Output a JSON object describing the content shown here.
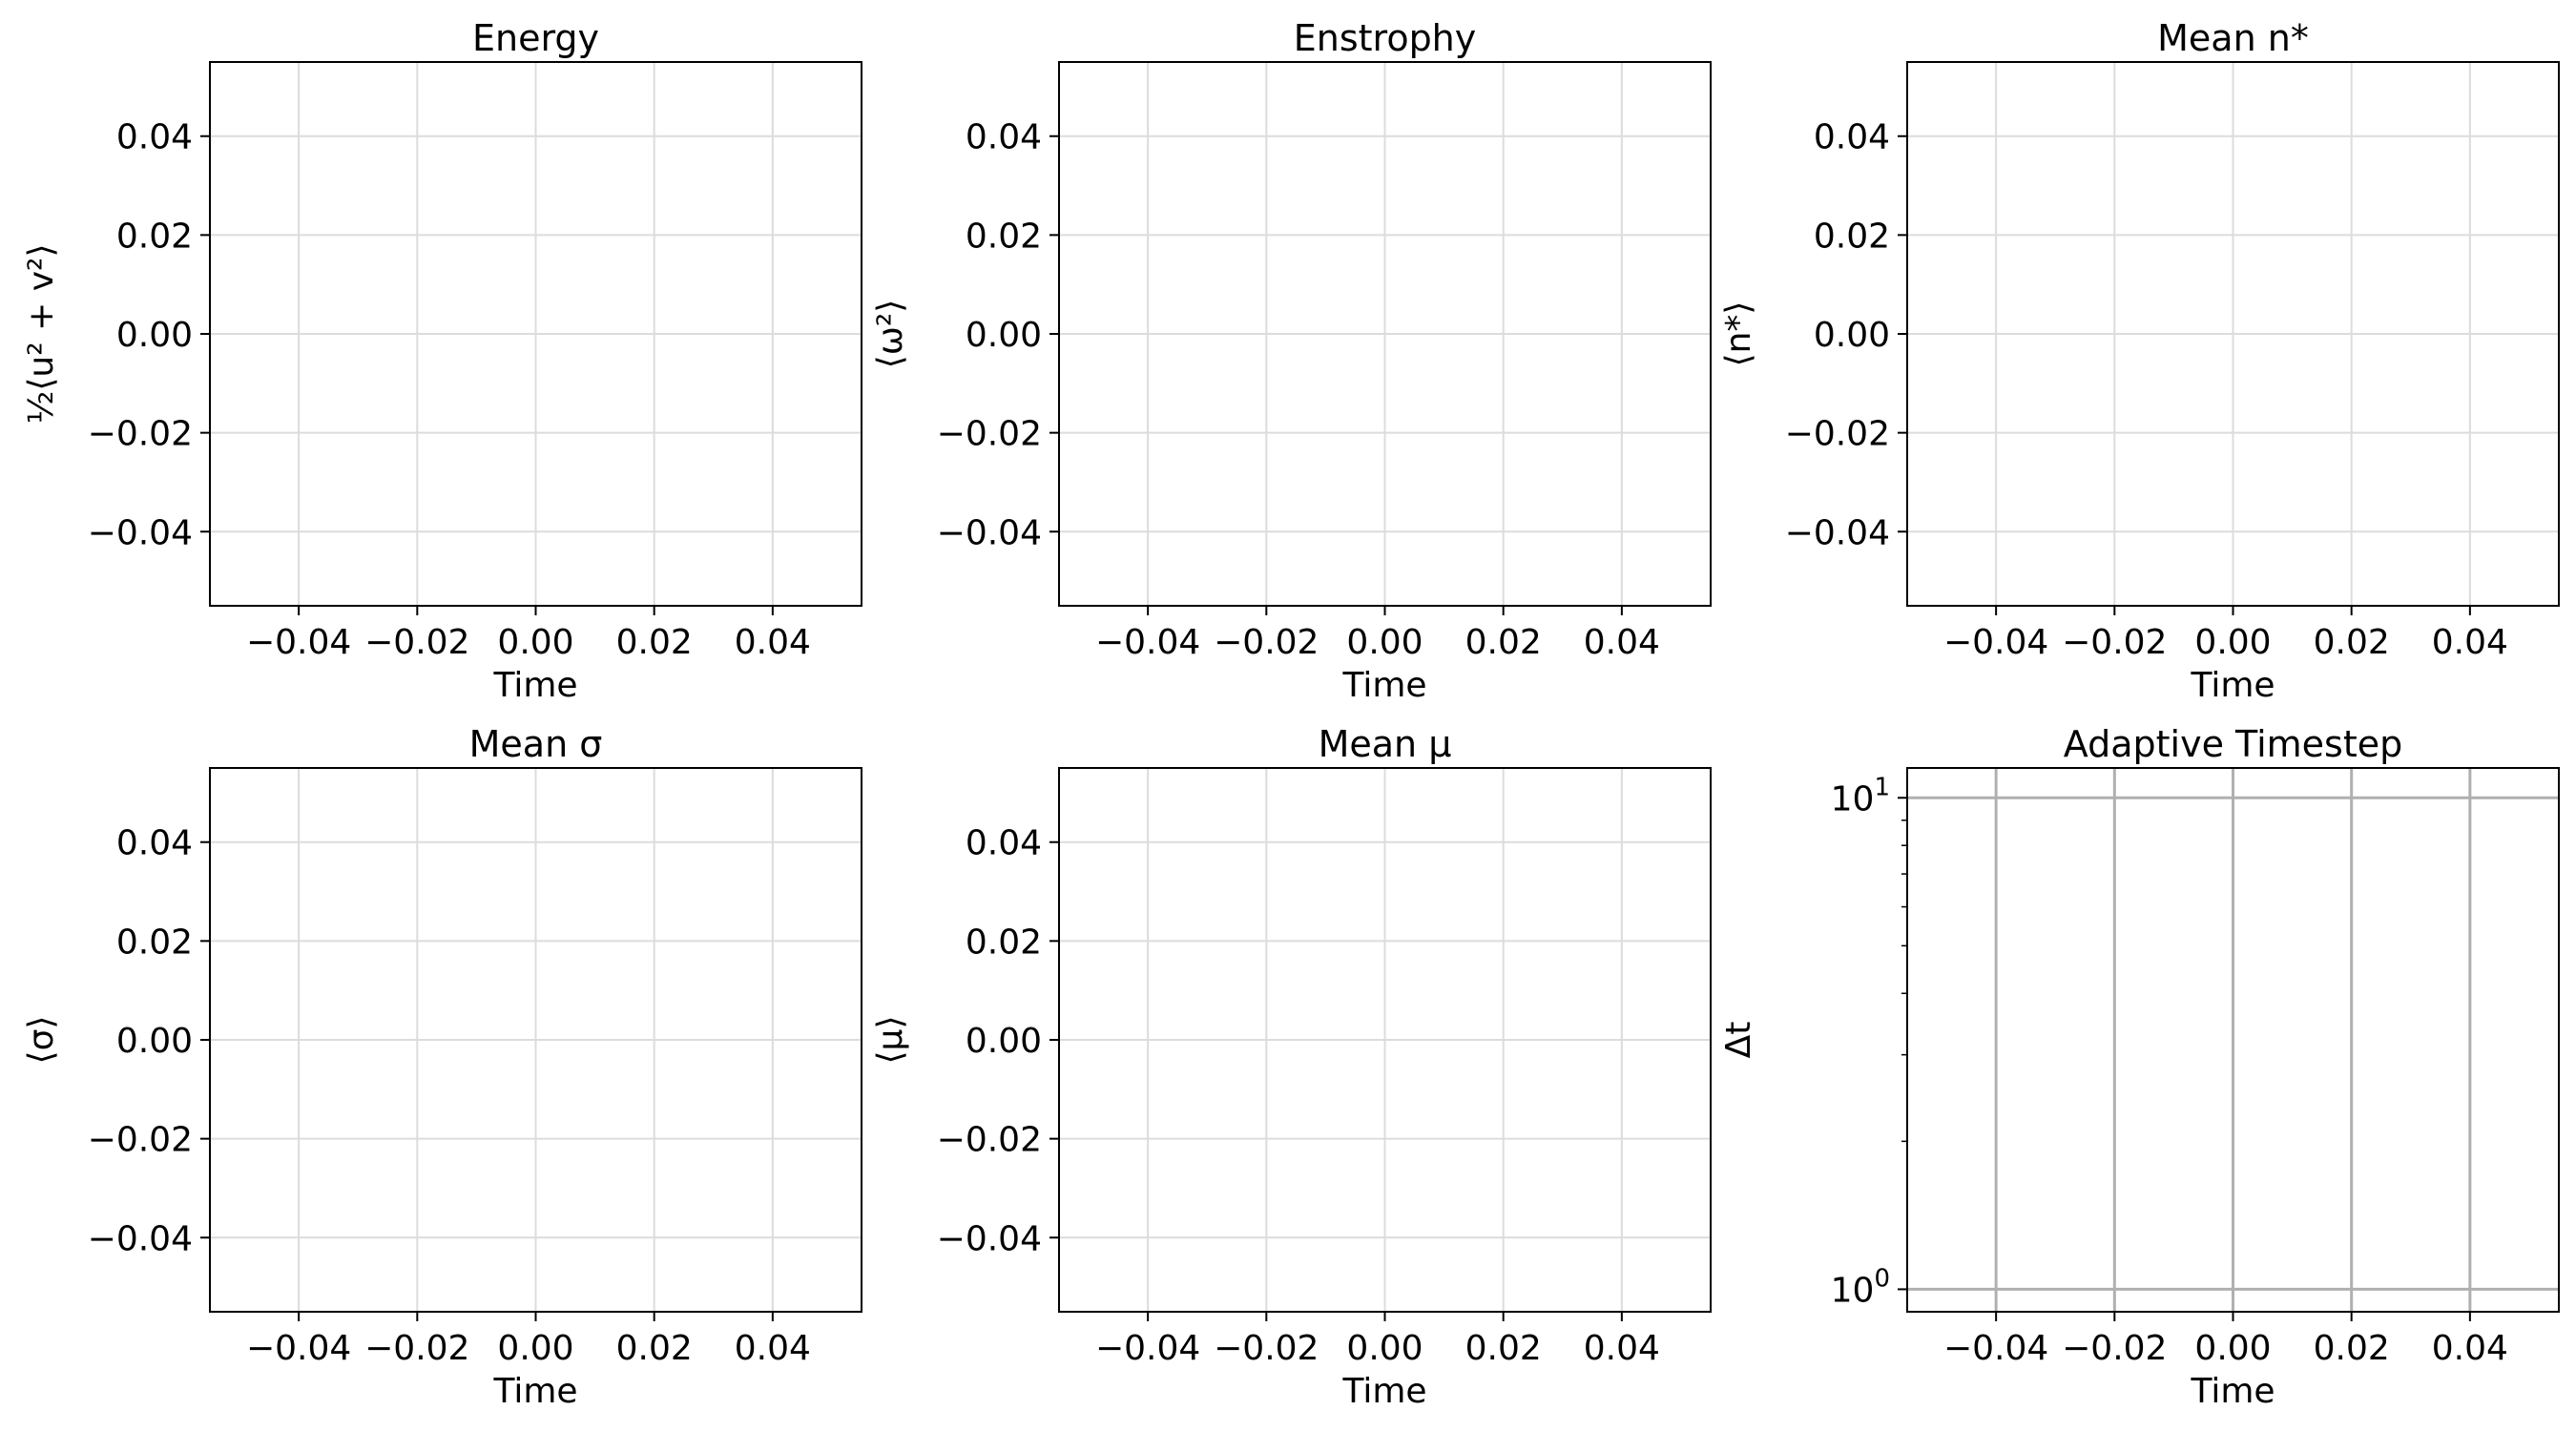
{
  "chart_data": [
    {
      "type": "line",
      "title": "Energy",
      "xlabel": "Time",
      "ylabel": "½⟨u² + v²⟩",
      "series": [],
      "xlim": [
        -0.055,
        0.055
      ],
      "ylim": [
        -0.055,
        0.055
      ],
      "xticks": [
        -0.04,
        -0.02,
        0.0,
        0.02,
        0.04
      ],
      "xtick_labels": [
        "−0.04",
        "−0.02",
        "0.00",
        "0.02",
        "0.04"
      ],
      "yticks": [
        -0.04,
        -0.02,
        0.0,
        0.02,
        0.04
      ],
      "ytick_labels": [
        "−0.04",
        "−0.02",
        "0.00",
        "0.02",
        "0.04"
      ],
      "yscale": "linear",
      "grid": true
    },
    {
      "type": "line",
      "title": "Enstrophy",
      "xlabel": "Time",
      "ylabel": "⟨ω²⟩",
      "series": [],
      "xlim": [
        -0.055,
        0.055
      ],
      "ylim": [
        -0.055,
        0.055
      ],
      "xticks": [
        -0.04,
        -0.02,
        0.0,
        0.02,
        0.04
      ],
      "xtick_labels": [
        "−0.04",
        "−0.02",
        "0.00",
        "0.02",
        "0.04"
      ],
      "yticks": [
        -0.04,
        -0.02,
        0.0,
        0.02,
        0.04
      ],
      "ytick_labels": [
        "−0.04",
        "−0.02",
        "0.00",
        "0.02",
        "0.04"
      ],
      "yscale": "linear",
      "grid": true
    },
    {
      "type": "line",
      "title": "Mean n*",
      "xlabel": "Time",
      "ylabel": "⟨n*⟩",
      "series": [],
      "xlim": [
        -0.055,
        0.055
      ],
      "ylim": [
        -0.055,
        0.055
      ],
      "xticks": [
        -0.04,
        -0.02,
        0.0,
        0.02,
        0.04
      ],
      "xtick_labels": [
        "−0.04",
        "−0.02",
        "0.00",
        "0.02",
        "0.04"
      ],
      "yticks": [
        -0.04,
        -0.02,
        0.0,
        0.02,
        0.04
      ],
      "ytick_labels": [
        "−0.04",
        "−0.02",
        "0.00",
        "0.02",
        "0.04"
      ],
      "yscale": "linear",
      "grid": true
    },
    {
      "type": "line",
      "title": "Mean σ",
      "xlabel": "Time",
      "ylabel": "⟨σ⟩",
      "series": [],
      "xlim": [
        -0.055,
        0.055
      ],
      "ylim": [
        -0.055,
        0.055
      ],
      "xticks": [
        -0.04,
        -0.02,
        0.0,
        0.02,
        0.04
      ],
      "xtick_labels": [
        "−0.04",
        "−0.02",
        "0.00",
        "0.02",
        "0.04"
      ],
      "yticks": [
        -0.04,
        -0.02,
        0.0,
        0.02,
        0.04
      ],
      "ytick_labels": [
        "−0.04",
        "−0.02",
        "0.00",
        "0.02",
        "0.04"
      ],
      "yscale": "linear",
      "grid": true
    },
    {
      "type": "line",
      "title": "Mean μ",
      "xlabel": "Time",
      "ylabel": "⟨μ⟩",
      "series": [],
      "xlim": [
        -0.055,
        0.055
      ],
      "ylim": [
        -0.055,
        0.055
      ],
      "xticks": [
        -0.04,
        -0.02,
        0.0,
        0.02,
        0.04
      ],
      "xtick_labels": [
        "−0.04",
        "−0.02",
        "0.00",
        "0.02",
        "0.04"
      ],
      "yticks": [
        -0.04,
        -0.02,
        0.0,
        0.02,
        0.04
      ],
      "ytick_labels": [
        "−0.04",
        "−0.02",
        "0.00",
        "0.02",
        "0.04"
      ],
      "yscale": "linear",
      "grid": true
    },
    {
      "type": "line",
      "title": "Adaptive Timestep",
      "xlabel": "Time",
      "ylabel": "Δt",
      "series": [],
      "xlim": [
        -0.055,
        0.055
      ],
      "ylim": [
        0.9,
        11.5
      ],
      "xticks": [
        -0.04,
        -0.02,
        0.0,
        0.02,
        0.04
      ],
      "xtick_labels": [
        "−0.04",
        "−0.02",
        "0.00",
        "0.02",
        "0.04"
      ],
      "yticks": [
        1,
        10
      ],
      "ytick_labels": [
        {
          "base": "10",
          "exp": "0"
        },
        {
          "base": "10",
          "exp": "1"
        }
      ],
      "yscale": "log",
      "grid": true,
      "grid_color": "#b0b0b0"
    }
  ]
}
